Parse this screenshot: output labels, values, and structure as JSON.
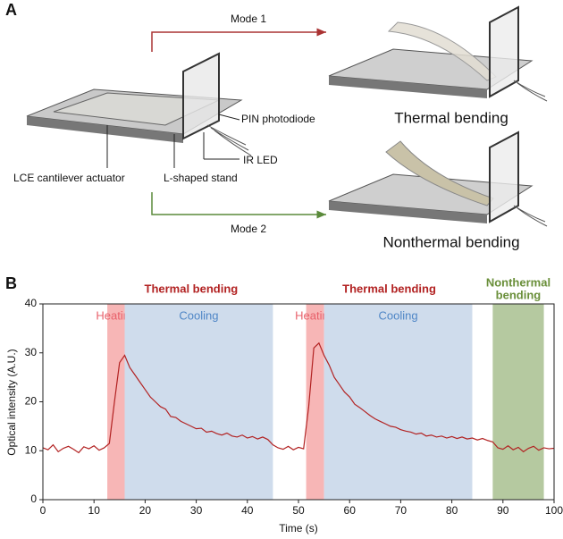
{
  "panel_a": {
    "label": "A",
    "mode1": "Mode 1",
    "mode2": "Mode 2",
    "pin": "PIN photodiode",
    "led": "IR LED",
    "actuator": "LCE cantilever actuator",
    "stand": "L-shaped stand",
    "thermal": "Thermal bending",
    "nonthermal": "Nonthermal bending"
  },
  "chart_data": {
    "type": "line",
    "panel_label": "B",
    "xlabel": "Time (s)",
    "ylabel": "Optical intensity (A.U.)",
    "xlim": [
      0,
      100
    ],
    "xticks": [
      0,
      10,
      20,
      30,
      40,
      50,
      60,
      70,
      80,
      90,
      100
    ],
    "ylim": [
      0,
      40
    ],
    "yticks": [
      0,
      10,
      20,
      30,
      40
    ],
    "regions": [
      {
        "label": "Heating",
        "start": 12.6,
        "end": 16,
        "color": "#f7b6b6",
        "text_color": "#e8616b"
      },
      {
        "label": "Cooling",
        "start": 16,
        "end": 45,
        "color": "#cfdcec",
        "text_color": "#4f86c6"
      },
      {
        "label": "Heating",
        "start": 51.5,
        "end": 55,
        "color": "#f7b6b6",
        "text_color": "#e8616b"
      },
      {
        "label": "Cooling",
        "start": 55,
        "end": 84,
        "color": "#cfdcec",
        "text_color": "#4f86c6"
      },
      {
        "start": 88,
        "end": 98,
        "color": "#b5c9a0"
      }
    ],
    "headers": [
      {
        "label": [
          "Thermal bending"
        ],
        "start": 13,
        "end": 45,
        "color": "#b22222"
      },
      {
        "label": [
          "Thermal bending"
        ],
        "start": 51.5,
        "end": 84,
        "color": "#b22222"
      },
      {
        "label": [
          "Nonthermal",
          "bending"
        ],
        "start": 88,
        "end": 98,
        "color": "#6a8f3a"
      }
    ],
    "x": [
      0,
      1,
      2,
      3,
      4,
      5,
      6,
      7,
      8,
      9,
      10,
      11,
      12,
      13,
      14,
      15,
      16,
      17,
      18,
      19,
      20,
      21,
      22,
      23,
      24,
      25,
      26,
      27,
      28,
      29,
      30,
      31,
      32,
      33,
      34,
      35,
      36,
      37,
      38,
      39,
      40,
      41,
      42,
      43,
      44,
      45,
      46,
      47,
      48,
      49,
      50,
      51,
      52,
      53,
      54,
      55,
      56,
      57,
      58,
      59,
      60,
      61,
      62,
      63,
      64,
      65,
      66,
      67,
      68,
      69,
      70,
      71,
      72,
      73,
      74,
      75,
      76,
      77,
      78,
      79,
      80,
      81,
      82,
      83,
      84,
      85,
      86,
      87,
      88,
      89,
      90,
      91,
      92,
      93,
      94,
      95,
      96,
      97,
      98,
      99,
      100
    ],
    "series": [
      {
        "color": "#b22222",
        "values": [
          10.6,
          10.2,
          11.2,
          9.8,
          10.5,
          10.9,
          10.3,
          9.6,
          10.8,
          10.4,
          11.0,
          10.1,
          10.6,
          11.5,
          20,
          28,
          29.5,
          27,
          25.5,
          24,
          22.5,
          21,
          20,
          19,
          18.5,
          17,
          16.8,
          16,
          15.5,
          15,
          14.5,
          14.6,
          13.8,
          14,
          13.5,
          13.2,
          13.6,
          13,
          12.8,
          13.2,
          12.6,
          12.9,
          12.4,
          12.8,
          12.3,
          11.2,
          10.6,
          10.3,
          10.9,
          10.2,
          10.7,
          10.4,
          19,
          31,
          32,
          29.5,
          27.5,
          25,
          23.5,
          22,
          21,
          19.5,
          18.8,
          18,
          17.2,
          16.5,
          16,
          15.5,
          15,
          14.8,
          14.3,
          14,
          13.8,
          13.4,
          13.6,
          13,
          13.2,
          12.8,
          13,
          12.6,
          12.9,
          12.5,
          12.8,
          12.4,
          12.6,
          12.2,
          12.5,
          12.1,
          11.8,
          10.6,
          10.3,
          11.0,
          10.2,
          10.7,
          9.8,
          10.5,
          10.9,
          10.1,
          10.6,
          10.4,
          10.5
        ]
      }
    ]
  }
}
